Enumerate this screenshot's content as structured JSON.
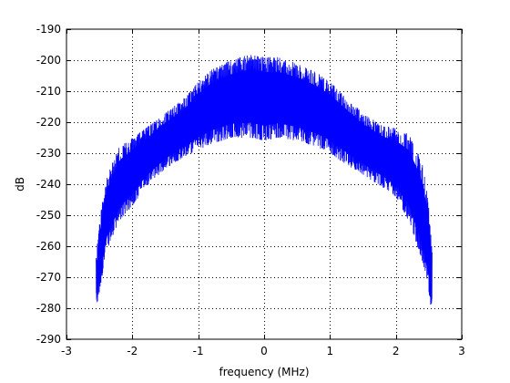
{
  "chart_data": {
    "type": "line",
    "title": "",
    "xlabel": "frequency (MHz)",
    "ylabel": "dB",
    "xlim": [
      -3,
      3
    ],
    "ylim": [
      -290,
      -190
    ],
    "xticks": [
      -3,
      -2,
      -1,
      0,
      1,
      2,
      3
    ],
    "yticks": [
      -190,
      -200,
      -210,
      -220,
      -230,
      -240,
      -250,
      -260,
      -270,
      -280,
      -290
    ],
    "xtick_labels": [
      "-3",
      "-2",
      "-1",
      "0",
      "1",
      "2",
      "3"
    ],
    "ytick_labels": [
      "-190",
      "-200",
      "-210",
      "-220",
      "-230",
      "-240",
      "-250",
      "-260",
      "-270",
      "-280",
      "-290"
    ],
    "grid": true,
    "grid_style": "dotted",
    "legend": null,
    "series": [
      {
        "color": "#0000ff",
        "style": "dense noisy spectrum",
        "x": [
          -2.55,
          -2.5,
          -2.4,
          -2.2,
          -2.0,
          -1.8,
          -1.5,
          -1.2,
          -1.0,
          -0.8,
          -0.5,
          -0.2,
          0.0,
          0.2,
          0.5,
          0.8,
          1.0,
          1.2,
          1.5,
          1.8,
          2.0,
          2.2,
          2.4,
          2.5,
          2.55
        ],
        "upper": [
          -263,
          -252,
          -238,
          -228,
          -225,
          -222,
          -217,
          -212,
          -207,
          -203,
          -200,
          -198,
          -199,
          -199,
          -201,
          -204,
          -207,
          -211,
          -217,
          -221,
          -222,
          -224,
          -233,
          -246,
          -262
        ],
        "lower": [
          -281,
          -275,
          -262,
          -252,
          -247,
          -241,
          -235,
          -231,
          -229,
          -227,
          -225,
          -225,
          -226,
          -225,
          -226,
          -228,
          -230,
          -233,
          -237,
          -241,
          -244,
          -252,
          -265,
          -275,
          -282
        ]
      }
    ]
  }
}
